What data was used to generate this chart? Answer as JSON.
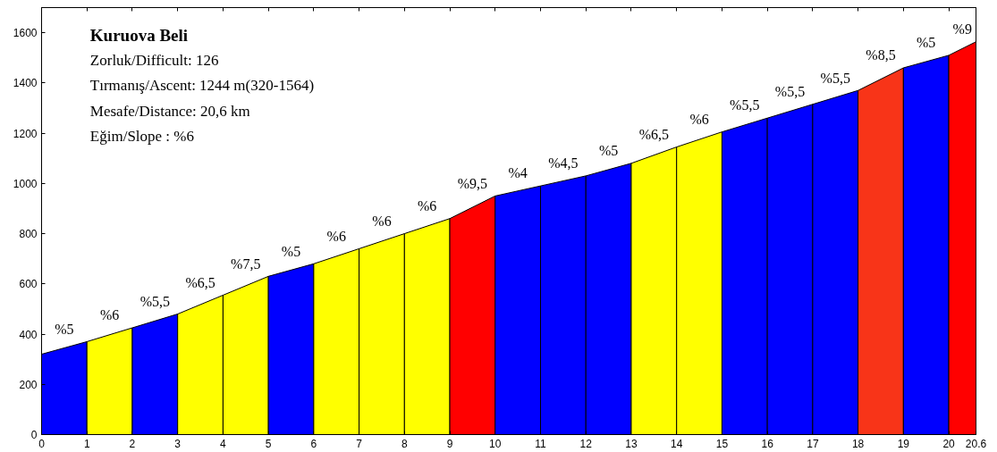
{
  "chart_data": {
    "type": "area",
    "title": "Kuruova Beli",
    "series": [
      {
        "name": "%5",
        "color": "#0000ff",
        "x": [
          0,
          1
        ],
        "values": [
          320,
          370
        ]
      },
      {
        "name": "%6",
        "color": "#ffff00",
        "x": [
          1,
          2
        ],
        "values": [
          370,
          425
        ]
      },
      {
        "name": "%5,5",
        "color": "#0000ff",
        "x": [
          2,
          3
        ],
        "values": [
          425,
          480
        ]
      },
      {
        "name": "%6,5",
        "color": "#ffff00",
        "x": [
          3,
          4
        ],
        "values": [
          480,
          555
        ]
      },
      {
        "name": "%7,5",
        "color": "#ffff00",
        "x": [
          4,
          5
        ],
        "values": [
          555,
          630
        ]
      },
      {
        "name": "%5",
        "color": "#0000ff",
        "x": [
          5,
          6
        ],
        "values": [
          630,
          680
        ]
      },
      {
        "name": "%6",
        "color": "#ffff00",
        "x": [
          6,
          7
        ],
        "values": [
          680,
          740
        ]
      },
      {
        "name": "%6",
        "color": "#ffff00",
        "x": [
          7,
          8
        ],
        "values": [
          740,
          800
        ]
      },
      {
        "name": "%6",
        "color": "#ffff00",
        "x": [
          8,
          9
        ],
        "values": [
          800,
          860
        ]
      },
      {
        "name": "%9,5",
        "color": "#ff0000",
        "x": [
          9,
          10
        ],
        "values": [
          860,
          950
        ]
      },
      {
        "name": "%4",
        "color": "#0000ff",
        "x": [
          10,
          11
        ],
        "values": [
          950,
          990
        ]
      },
      {
        "name": "%4,5",
        "color": "#0000ff",
        "x": [
          11,
          12
        ],
        "values": [
          990,
          1030
        ]
      },
      {
        "name": "%5",
        "color": "#0000ff",
        "x": [
          12,
          13
        ],
        "values": [
          1030,
          1080
        ]
      },
      {
        "name": "%6,5",
        "color": "#ffff00",
        "x": [
          13,
          14
        ],
        "values": [
          1080,
          1145
        ]
      },
      {
        "name": "%6",
        "color": "#ffff00",
        "x": [
          14,
          15
        ],
        "values": [
          1145,
          1205
        ]
      },
      {
        "name": "%5,5",
        "color": "#0000ff",
        "x": [
          15,
          16
        ],
        "values": [
          1205,
          1260
        ]
      },
      {
        "name": "%5,5",
        "color": "#0000ff",
        "x": [
          16,
          17
        ],
        "values": [
          1260,
          1315
        ]
      },
      {
        "name": "%5,5",
        "color": "#0000ff",
        "x": [
          17,
          18
        ],
        "values": [
          1315,
          1370
        ]
      },
      {
        "name": "%8,5",
        "color": "#f83418",
        "x": [
          18,
          19
        ],
        "values": [
          1370,
          1460
        ]
      },
      {
        "name": "%5",
        "color": "#0000ff",
        "x": [
          19,
          20
        ],
        "values": [
          1460,
          1510
        ]
      },
      {
        "name": "%9",
        "color": "#ff0000",
        "x": [
          20,
          20.6
        ],
        "values": [
          1510,
          1564
        ]
      }
    ],
    "annotations": [
      "Zorluk/Difficult:    126",
      "Tırmanış/Ascent:    1244 m(320-1564)",
      "Mesafe/Distance:    20,6 km",
      "Eğim/Slope    :    %6"
    ],
    "xlim": [
      0,
      20.6
    ],
    "ylim": [
      0,
      1700
    ],
    "xticks": [
      0,
      1,
      2,
      3,
      4,
      5,
      6,
      7,
      8,
      9,
      10,
      11,
      12,
      13,
      14,
      15,
      16,
      17,
      18,
      19,
      20,
      20.6
    ],
    "yticks": [
      0,
      200,
      400,
      600,
      800,
      1000,
      1200,
      1400,
      1600
    ],
    "grid": false
  }
}
